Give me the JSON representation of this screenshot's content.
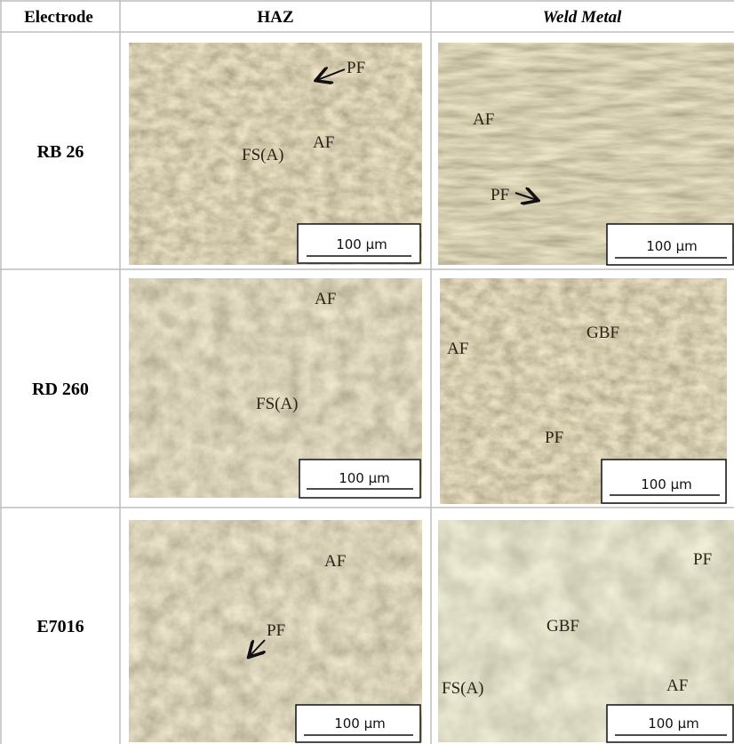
{
  "table": {
    "header": [
      "Electrode",
      "HAZ",
      "Weld Metal"
    ],
    "rows": [
      {
        "electrode": "RB 26",
        "haz": {
          "labels": [
            "PF",
            "FS(A)",
            "AF"
          ],
          "scale": "100 µm"
        },
        "weld": {
          "labels": [
            "AF",
            "PF"
          ],
          "scale": "100 µm"
        }
      },
      {
        "electrode": "RD 260",
        "haz": {
          "labels": [
            "AF",
            "FS(A)"
          ],
          "scale": "100 µm"
        },
        "weld": {
          "labels": [
            "AF",
            "GBF",
            "PF"
          ],
          "scale": "100 µm"
        }
      },
      {
        "electrode": "E7016",
        "haz": {
          "labels": [
            "AF",
            "PF"
          ],
          "scale": "100 µm"
        },
        "weld": {
          "labels": [
            "PF",
            "GBF",
            "AF",
            "FS(A)"
          ],
          "scale": "100 µm"
        }
      }
    ]
  }
}
